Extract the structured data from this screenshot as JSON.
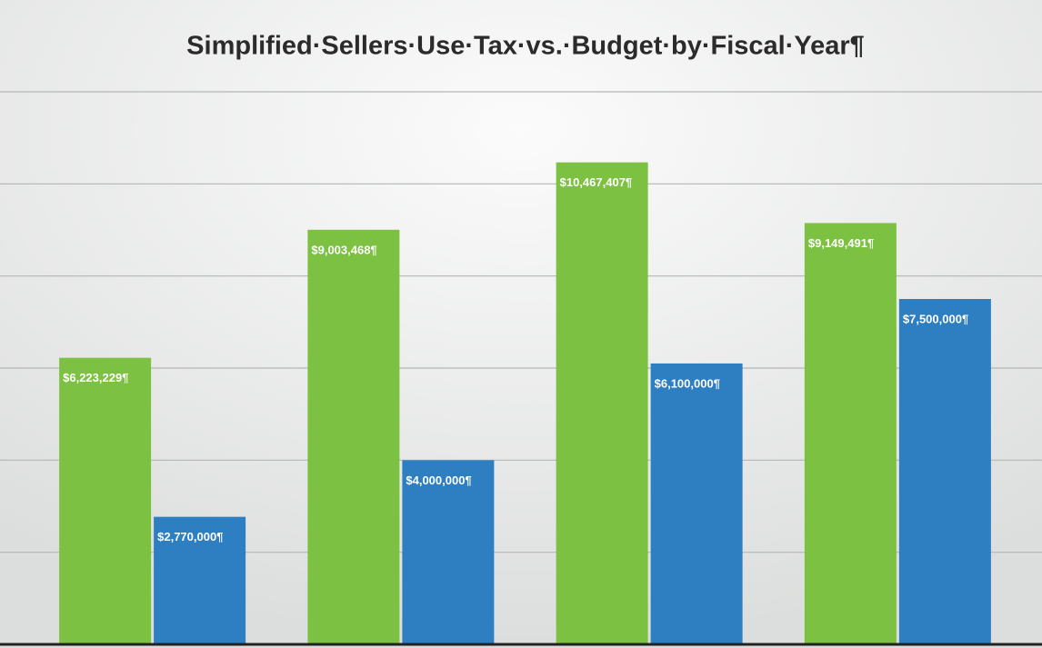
{
  "chart_data": {
    "type": "bar",
    "title": "Simplified·Sellers·Use·Tax·vs.·Budget·by·Fiscal·Year¶",
    "categories": [
      null,
      null,
      null,
      null
    ],
    "series": [
      {
        "color": "#7cc142",
        "values": [
          6223229,
          9003468,
          10467407,
          9149491
        ],
        "value_labels": [
          "$6,223,229¶",
          "$9,003,468¶",
          "$10,467,407¶",
          "$9,149,491¶"
        ]
      },
      {
        "color": "#2e7fc2",
        "values": [
          2770000,
          4000000,
          6100000,
          7500000
        ],
        "value_labels": [
          "$2,770,000¶",
          "$4,000,000¶",
          "$6,100,000¶",
          "$7,500,000¶"
        ]
      }
    ],
    "ylim": [
      0,
      12000000
    ],
    "yticks": [
      0,
      2000000,
      4000000,
      6000000,
      8000000,
      10000000,
      12000000
    ],
    "grid": true
  }
}
